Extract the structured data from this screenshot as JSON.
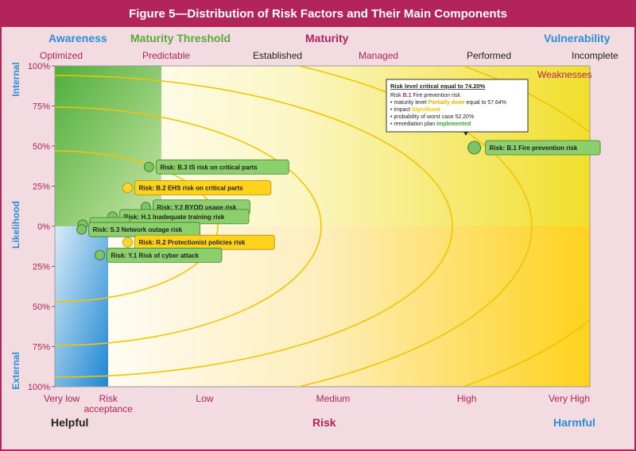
{
  "title": "Figure 5—Distribution of Risk Factors and Their Main Components",
  "top_labels": [
    {
      "text": "Awareness",
      "color": "#2a8fd6"
    },
    {
      "text": "Maturity Threshold",
      "color": "#5aa83a"
    },
    {
      "text": "Maturity",
      "color": "#b3245a"
    },
    {
      "text": "Vulnerability",
      "color": "#2a8fd6"
    }
  ],
  "maturity_levels": [
    "Optimized",
    "Predictable",
    "Established",
    "Managed",
    "Performed",
    "Incomplete"
  ],
  "weaknesses_label": "Weaknesses",
  "likelihood": {
    "axis_label": "Likelihood",
    "top": "Internal",
    "bottom": "External"
  },
  "bottom_labels": {
    "left": "Helpful",
    "center": "Risk",
    "right": "Harmful"
  },
  "chart_data": {
    "type": "scatter",
    "title": "Figure 5—Distribution of Risk Factors and Their Main Components",
    "xlabel": "Risk",
    "ylabel": "Likelihood",
    "x_ticks": [
      "Very low",
      "Risk acceptance",
      "Low",
      "Medium",
      "High",
      "Very High"
    ],
    "x_tick_values": [
      0,
      0.5,
      1.4,
      2.6,
      3.85,
      5
    ],
    "xlim": [
      0,
      5
    ],
    "y_ticks": [
      "100%",
      "75%",
      "50%",
      "25%",
      "0%",
      "25%",
      "50%",
      "75%",
      "100%"
    ],
    "y_tick_values": [
      100,
      75,
      50,
      25,
      0,
      -25,
      -50,
      -75,
      -100
    ],
    "ylim": [
      -100,
      100
    ],
    "points": [
      {
        "label": "Risk: B.1 Fire prevention risk",
        "x": 3.92,
        "y": 49,
        "kind": "green",
        "highlight": true
      },
      {
        "label": "Risk: B.3 IS risk on critical parts",
        "x": 0.88,
        "y": 37,
        "kind": "green"
      },
      {
        "label": "Risk: B.2 EHS risk on critical parts",
        "x": 0.68,
        "y": 24,
        "kind": "yellow"
      },
      {
        "label": "Risk: Y.2 BYOD usage risk",
        "x": 0.85,
        "y": 12,
        "kind": "green"
      },
      {
        "label": "Risk: H.1 Inadequate training risk",
        "x": 0.54,
        "y": 6,
        "kind": "green"
      },
      {
        "label": "Risk: S.1",
        "x": 0.26,
        "y": 1,
        "kind": "green"
      },
      {
        "label": "Risk: S.3 Network outage risk",
        "x": 0.25,
        "y": -2,
        "kind": "green"
      },
      {
        "label": "Risk: R.2 Protectionist policies risk",
        "x": 0.68,
        "y": -10,
        "kind": "yellow"
      },
      {
        "label": "Risk: Y.1 Risk of cyber attack",
        "x": 0.42,
        "y": -18,
        "kind": "green"
      }
    ]
  },
  "tooltip": {
    "heading": "Risk level critical equal to 74.20%",
    "line1_prefix": "Risk ",
    "line1_code": "B.1",
    "line1_suffix": " Fire prevention risk",
    "b1_prefix": "• maturity level ",
    "b1_highlight": "Partially done",
    "b1_suffix": " equal to 57.64%",
    "b2_prefix": "• impact ",
    "b2_highlight": "Significant",
    "b3": "• probability of worst case 52.20%",
    "b4_prefix": "• remediation plan ",
    "b4_highlight": "Implemented"
  },
  "colors": {
    "brand": "#b3245a",
    "blue": "#2a8fd6",
    "green": "#5aa83a",
    "yellow": "#ffd21c",
    "point_green_fill": "#7cc466",
    "point_yellow_fill": "#ffd633",
    "label_green_bg": "#8ccf6d",
    "label_yellow_bg": "#ffd21c"
  }
}
